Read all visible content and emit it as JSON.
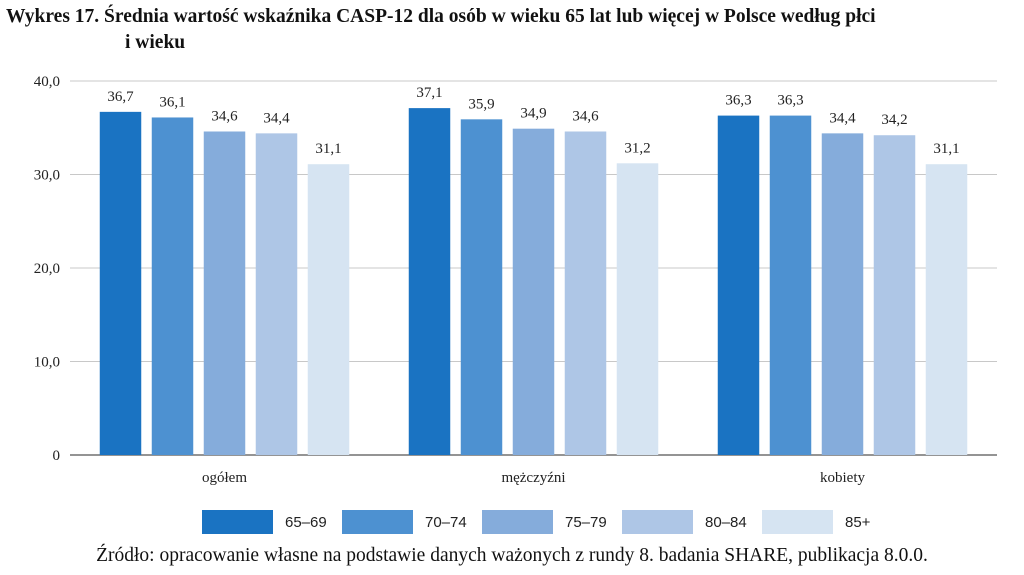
{
  "chart_data": {
    "type": "bar",
    "title_line1": "Wykres 17. Średnia wartość wskaźnika CASP-12 dla osób w wieku 65 lat lub więcej w Polsce według płci",
    "title_line2": "i wieku",
    "categories": [
      "ogółem",
      "mężczyźni",
      "kobiety"
    ],
    "series": [
      {
        "name": "65–69",
        "color": "#1a73c2",
        "values": [
          36.7,
          37.1,
          36.3
        ],
        "labels": [
          "36,7",
          "37,1",
          "36,3"
        ]
      },
      {
        "name": "70–74",
        "color": "#4d91d1",
        "values": [
          36.1,
          35.9,
          36.3
        ],
        "labels": [
          "36,1",
          "35,9",
          "36,3"
        ]
      },
      {
        "name": "75–79",
        "color": "#85acdb",
        "values": [
          34.6,
          34.9,
          34.4
        ],
        "labels": [
          "34,6",
          "34,9",
          "34,4"
        ]
      },
      {
        "name": "80–84",
        "color": "#aec6e6",
        "values": [
          34.4,
          34.6,
          34.2
        ],
        "labels": [
          "34,4",
          "34,6",
          "34,2"
        ]
      },
      {
        "name": "85+",
        "color": "#d6e4f2",
        "values": [
          31.1,
          31.2,
          31.1
        ],
        "labels": [
          "31,1",
          "31,2",
          "31,1"
        ]
      }
    ],
    "ylim": [
      0,
      40
    ],
    "yticks": [
      0,
      10,
      20,
      30,
      40
    ],
    "ytick_labels": [
      "0",
      "10,0",
      "20,0",
      "30,0",
      "40,0"
    ],
    "gridlines": true,
    "legend_position": "bottom"
  },
  "source": "Źródło: opracowanie własne na podstawie danych ważonych z rundy 8. badania SHARE, publikacja 8.0.0."
}
